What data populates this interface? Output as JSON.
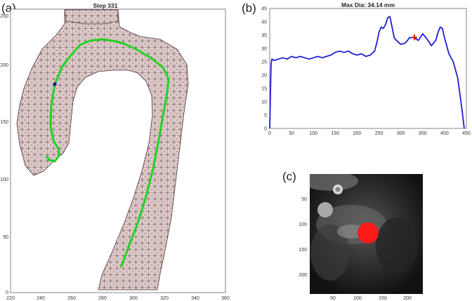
{
  "panels": {
    "a": {
      "letter": "(a)",
      "title": "Step 331",
      "x_ticks": [
        "220",
        "240",
        "260",
        "280",
        "300",
        "320",
        "340",
        "360"
      ],
      "y_ticks": [
        "0",
        "50",
        "100",
        "150",
        "200",
        "250"
      ]
    },
    "b": {
      "letter": "(b)",
      "title": "Max Dia: 34.14 mm",
      "x_ticks": [
        "0",
        "50",
        "100",
        "150",
        "200",
        "250",
        "300",
        "350",
        "400",
        "450"
      ],
      "y_ticks": [
        "0",
        "5",
        "10",
        "15",
        "20",
        "25",
        "30",
        "35",
        "40",
        "45"
      ]
    },
    "c": {
      "letter": "(c)",
      "x_ticks": [
        "50",
        "100",
        "150",
        "200"
      ],
      "y_ticks": [
        "50",
        "100",
        "150",
        "200"
      ]
    }
  },
  "chart_data": [
    {
      "type": "line",
      "panel": "b",
      "title": "Max Dia: 34.14 mm",
      "xlabel": "",
      "ylabel": "",
      "xlim": [
        0,
        450
      ],
      "ylim": [
        0,
        45
      ],
      "grid": false,
      "line_color": "#1f1fd6",
      "marker_color": "#e01818",
      "marker": {
        "x": 331,
        "y": 34.14
      },
      "x": [
        0,
        3,
        5,
        10,
        20,
        30,
        40,
        50,
        60,
        70,
        80,
        90,
        100,
        110,
        120,
        130,
        140,
        150,
        160,
        170,
        180,
        190,
        200,
        210,
        220,
        230,
        240,
        245,
        250,
        255,
        260,
        265,
        270,
        275,
        280,
        285,
        290,
        300,
        310,
        320,
        330,
        340,
        350,
        360,
        370,
        380,
        385,
        390,
        395,
        400,
        405,
        410,
        420,
        430,
        440,
        445
      ],
      "y": [
        0,
        24,
        26,
        25.5,
        26,
        26.5,
        26,
        27,
        26.5,
        27,
        26.5,
        26,
        26.5,
        27,
        26.5,
        27,
        27.5,
        28.5,
        29,
        28.5,
        29,
        28,
        27.5,
        28,
        27,
        27.5,
        29,
        32,
        36,
        38,
        37.5,
        39,
        41.5,
        42,
        38,
        34,
        33,
        31.5,
        32,
        34,
        34.1,
        33,
        35.5,
        33.5,
        31,
        33,
        36,
        38,
        37.5,
        34,
        31,
        28,
        25,
        19,
        7,
        0
      ]
    }
  ]
}
